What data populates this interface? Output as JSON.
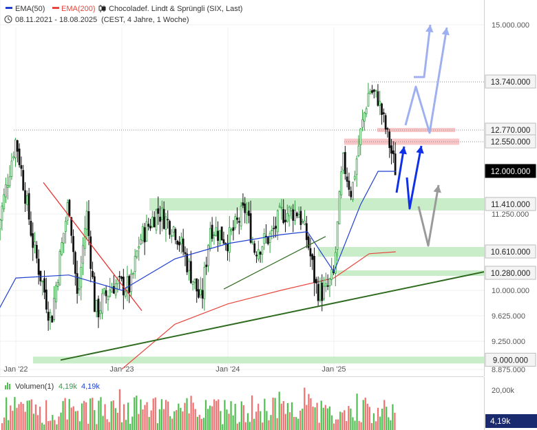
{
  "header": {
    "legend": [
      {
        "label": "EMA(50)",
        "color": "#1f3fcf"
      },
      {
        "label": "EMA(200)",
        "color": "#e8453c"
      }
    ],
    "instrument": "Chocoladef. Lindt & Sprüngli (SIX, Last)",
    "period_range": "08.11.2021 - 18.08.2025",
    "period_note": "(CEST, 4 Jahre, 1 Woche)",
    "chart_icon": "candlestick-icon",
    "clock_icon": "clock-icon"
  },
  "colors": {
    "up": "#2e9e3e",
    "down": "#111111",
    "ema50": "#1f3fcf",
    "ema200": "#e8453c",
    "zone_green": "#bfeabf",
    "zone_red": "#f7c0c0",
    "trend": "#2f6b1f",
    "arrow_blue": "#1030e8",
    "arrow_light": "#9fb0f0",
    "arrow_gray": "#9a9a9a",
    "vol_up": "#4fbf4f",
    "vol_down": "#f07070"
  },
  "volume": {
    "label": "Volumen(1)",
    "value_green": "4,19k",
    "value_blue": "4,19k",
    "axis_label": "20,00k",
    "last_badge": "4,19k",
    "icon": "volume-bars-icon"
  },
  "chart_data": {
    "type": "candlestick",
    "title": "Chocoladef. Lindt & Sprüngli (SIX, Last)",
    "interval": "1 Woche",
    "x_ticks": [
      "Jan '22",
      "Jan '23",
      "Jan '24",
      "Jan '25"
    ],
    "y_ticks": [
      "15.000.000",
      "11.250.000",
      "10.000.000",
      "9.625.000",
      "9.250.000",
      "8.875.000"
    ],
    "y_range": [
      8875000,
      15300000
    ],
    "price_levels": [
      {
        "label": "13.740.000",
        "value": 13740000,
        "type": "resistance"
      },
      {
        "label": "12.770.000",
        "value": 12770000,
        "type": "resistance"
      },
      {
        "label": "12.550.000",
        "value": 12550000,
        "type": "resistance"
      },
      {
        "label": "12.000.000",
        "value": 12000000,
        "type": "last"
      },
      {
        "label": "11.410.000",
        "value": 11410000,
        "type": "support"
      },
      {
        "label": "10.610.000",
        "value": 10610000,
        "type": "support"
      },
      {
        "label": "10.280.000",
        "value": 10280000,
        "type": "support"
      },
      {
        "label": "9.000.000",
        "value": 9000000,
        "type": "support"
      }
    ],
    "close_path": [
      [
        "Nov '21",
        11000000
      ],
      [
        "Jan '22",
        12600000
      ],
      [
        "Mar '22",
        10700000
      ],
      [
        "May '22",
        9550000
      ],
      [
        "Jul '22",
        11500000
      ],
      [
        "Aug '22",
        9800000
      ],
      [
        "Sep '22",
        11300000
      ],
      [
        "Oct '22",
        9650000
      ],
      [
        "Dec '22",
        10100000
      ],
      [
        "Feb '23",
        10050000
      ],
      [
        "Mar '23",
        10800000
      ],
      [
        "May '23",
        11300000
      ],
      [
        "Jul '23",
        11000000
      ],
      [
        "Aug '23",
        10600000
      ],
      [
        "Oct '23",
        9800000
      ],
      [
        "Nov '23",
        11050000
      ],
      [
        "Jan '24",
        10800000
      ],
      [
        "Mar '24",
        11350000
      ],
      [
        "Apr '24",
        10650000
      ],
      [
        "Jun '24",
        10900000
      ],
      [
        "Jul '24",
        11250000
      ],
      [
        "Sep '24",
        11300000
      ],
      [
        "Oct '24",
        10800000
      ],
      [
        "Nov '24",
        10050000
      ],
      [
        "Dec '24",
        9950000
      ],
      [
        "Jan '25",
        10250000
      ],
      [
        "Feb '25",
        12200000
      ],
      [
        "Mar '25",
        11600000
      ],
      [
        "Apr '25",
        12700000
      ],
      [
        "May '25",
        13600000
      ],
      [
        "Jun '25",
        13400000
      ],
      [
        "Jul '25",
        12700000
      ],
      [
        "Aug '25",
        12000000
      ]
    ],
    "ema50": [
      [
        "Nov '21",
        9700000
      ],
      [
        "Jan '22",
        10200000
      ],
      [
        "Jul '22",
        10250000
      ],
      [
        "Jan '23",
        10000000
      ],
      [
        "Jul '23",
        10500000
      ],
      [
        "Jan '24",
        10750000
      ],
      [
        "Jul '24",
        10900000
      ],
      [
        "Oct '24",
        10950000
      ],
      [
        "Jan '25",
        10300000
      ],
      [
        "Apr '25",
        11400000
      ],
      [
        "Jun '25",
        12000000
      ],
      [
        "Aug '25",
        12000000
      ]
    ],
    "ema200": [
      [
        "Jan '23",
        8880000
      ],
      [
        "Jul '23",
        9500000
      ],
      [
        "Jan '24",
        9800000
      ],
      [
        "Jul '24",
        10000000
      ],
      [
        "Jan '25",
        10200000
      ],
      [
        "May '25",
        10580000
      ],
      [
        "Aug '25",
        10610000
      ]
    ]
  }
}
